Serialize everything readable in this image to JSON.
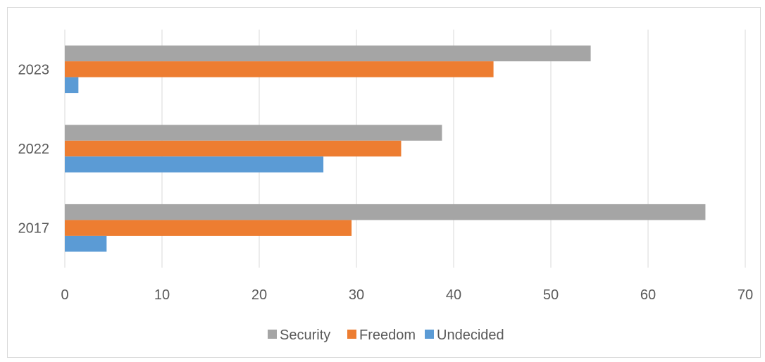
{
  "chart_data": {
    "type": "bar",
    "orientation": "horizontal",
    "categories": [
      "2017",
      "2022",
      "2023"
    ],
    "series": [
      {
        "name": "Security",
        "color": "#a5a5a5",
        "values": [
          65.9,
          38.8,
          54.1
        ]
      },
      {
        "name": "Freedom",
        "color": "#ed7d31",
        "values": [
          29.5,
          34.6,
          44.1
        ]
      },
      {
        "name": "Undecided",
        "color": "#5b9bd5",
        "values": [
          4.3,
          26.6,
          1.4
        ]
      }
    ],
    "xlim": [
      0,
      70
    ],
    "xticks": [
      0,
      10,
      20,
      30,
      40,
      50,
      60,
      70
    ],
    "grid": true,
    "legend_position": "bottom",
    "title": "",
    "xlabel": "",
    "ylabel": ""
  }
}
